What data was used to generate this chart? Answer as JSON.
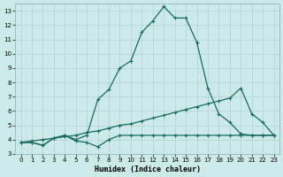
{
  "xlabel": "Humidex (Indice chaleur)",
  "bg_color": "#cceae8",
  "grid_color": "#b8d8d4",
  "line_color": "#1a6b60",
  "xlim": [
    -0.5,
    23.5
  ],
  "ylim": [
    3,
    13.5
  ],
  "xticks": [
    0,
    1,
    2,
    3,
    4,
    5,
    6,
    7,
    8,
    9,
    10,
    11,
    12,
    13,
    14,
    15,
    16,
    17,
    18,
    19,
    20,
    21,
    22,
    23
  ],
  "yticks": [
    3,
    4,
    5,
    6,
    7,
    8,
    9,
    10,
    11,
    12,
    13
  ],
  "line1_x": [
    0,
    1,
    2,
    3,
    4,
    5,
    6,
    7,
    8,
    9,
    10,
    11,
    12,
    13,
    14,
    15,
    16,
    17,
    18,
    19,
    20,
    21,
    22,
    23
  ],
  "line1_y": [
    3.8,
    3.8,
    3.6,
    4.1,
    4.3,
    3.9,
    3.8,
    3.5,
    4.0,
    4.3,
    4.3,
    4.3,
    4.3,
    4.3,
    4.3,
    4.3,
    4.3,
    4.3,
    4.3,
    4.3,
    4.3,
    4.3,
    4.3,
    4.3
  ],
  "line2_x": [
    0,
    1,
    2,
    3,
    4,
    5,
    6,
    7,
    8,
    9,
    10,
    11,
    12,
    13,
    14,
    15,
    16,
    17,
    18,
    19,
    20,
    21,
    22,
    23
  ],
  "line2_y": [
    3.8,
    3.8,
    3.6,
    4.1,
    4.3,
    4.0,
    4.3,
    6.8,
    7.5,
    9.0,
    9.5,
    11.5,
    12.3,
    13.3,
    12.5,
    12.5,
    10.8,
    7.6,
    5.8,
    5.2,
    4.4,
    4.3,
    4.3,
    4.3
  ],
  "line3_x": [
    0,
    1,
    2,
    3,
    4,
    5,
    6,
    7,
    8,
    9,
    10,
    11,
    12,
    13,
    14,
    15,
    16,
    17,
    18,
    19,
    20,
    21,
    22,
    23
  ],
  "line3_y": [
    3.8,
    3.9,
    4.0,
    4.1,
    4.2,
    4.3,
    4.5,
    4.6,
    4.8,
    5.0,
    5.1,
    5.3,
    5.5,
    5.7,
    5.9,
    6.1,
    6.3,
    6.5,
    6.7,
    6.9,
    7.6,
    5.8,
    5.2,
    4.3
  ]
}
